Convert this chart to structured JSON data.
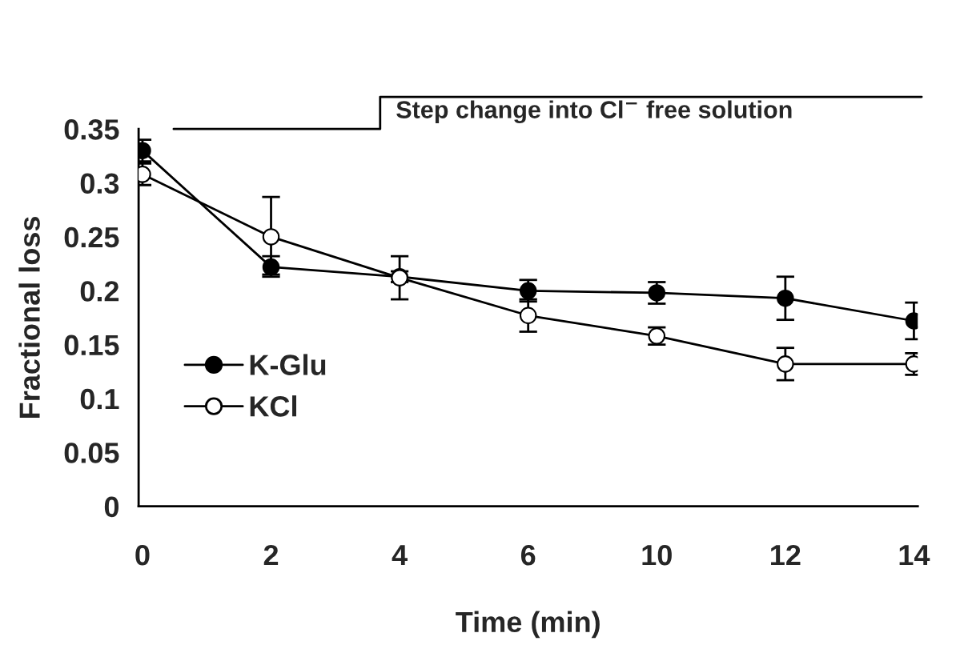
{
  "chart_data": {
    "type": "line",
    "xlabel": "Time (min)",
    "ylabel": "Fractional loss",
    "categories": [
      "0",
      "2",
      "4",
      "6",
      "10",
      "12",
      "14"
    ],
    "series": [
      {
        "name": "K-Glu",
        "color": "#000000",
        "values": [
          0.33,
          0.222,
          0.213,
          0.2,
          0.198,
          0.193,
          0.172
        ],
        "errors": [
          0.01,
          [
            0.215,
            0.232
          ],
          0.005,
          0.01,
          0.01,
          0.02,
          0.017
        ]
      },
      {
        "name": "KCl",
        "color": "#ffffff",
        "values": [
          0.308,
          0.25,
          0.212,
          0.177,
          0.158,
          0.132,
          0.132
        ],
        "errors": [
          0.01,
          0.037,
          0.02,
          0.015,
          0.008,
          0.015,
          0.01
        ]
      }
    ],
    "marker": "circle",
    "ylim": [
      0,
      0.35
    ],
    "yticks": [
      {
        "value": 0,
        "label": "0"
      },
      0.05,
      0.1,
      0.15,
      0.2,
      0.25,
      0.3,
      0.35
    ],
    "legend": "lower left",
    "annotations": [
      "Step change into Cl$^{−}$ free solution"
    ]
  }
}
